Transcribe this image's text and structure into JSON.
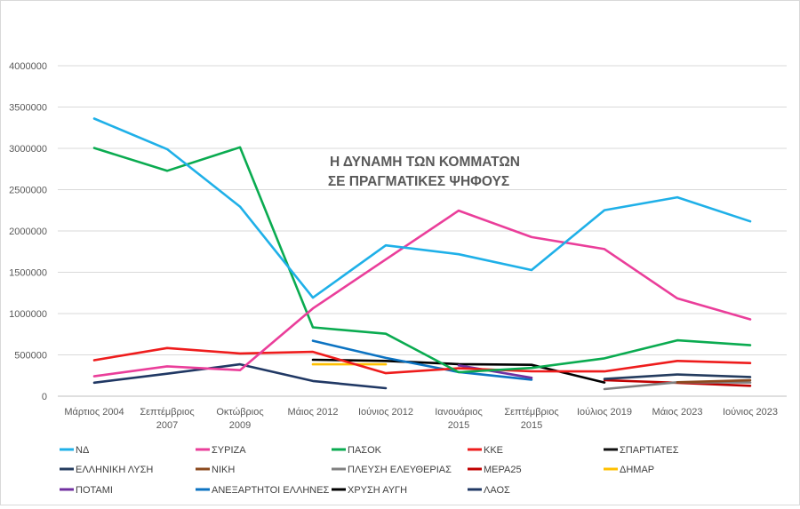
{
  "chart_data": {
    "type": "line",
    "title_line1": "Η ΔΥΝΑΜΗ ΤΩΝ ΚΟΜΜΑΤΩΝ",
    "title_line2": "ΣΕ ΠΡΑΓΜΑΤΙΚΕΣ ΨΗΦΟΥΣ",
    "categories": [
      [
        "Μάρτιος 2004"
      ],
      [
        "Σεπτέμβριος",
        "2007"
      ],
      [
        "Οκτώβριος",
        "2009"
      ],
      [
        "Μάιος 2012"
      ],
      [
        "Ιούνιος 2012"
      ],
      [
        "Ιανουάριος",
        "2015"
      ],
      [
        "Σεπτέμβριος",
        "2015"
      ],
      [
        "Ιούλιος 2019"
      ],
      [
        "Μάιος 2023"
      ],
      [
        "Ιούνιος 2023"
      ]
    ],
    "ylim": [
      0,
      4000000
    ],
    "yticks": [
      0,
      500000,
      1000000,
      1500000,
      2000000,
      2500000,
      3000000,
      3500000,
      4000000
    ],
    "grid": true,
    "legend_position": "bottom",
    "series": [
      {
        "name": "ΝΔ",
        "color": "#1fb0e8",
        "values": [
          3360000,
          2990000,
          2295000,
          1192000,
          1826000,
          1718000,
          1527000,
          2252000,
          2407000,
          2116000
        ]
      },
      {
        "name": "ΣΥΡΙΖΑ",
        "color": "#ea3e9a",
        "values": [
          241000,
          361000,
          315000,
          1062000,
          1655000,
          2246000,
          1926000,
          1781000,
          1184000,
          930000
        ]
      },
      {
        "name": "ΠΑΣΟΚ",
        "color": "#0aab50",
        "values": [
          3004000,
          2728000,
          3013000,
          833000,
          756000,
          290000,
          342000,
          458000,
          676000,
          617000
        ]
      },
      {
        "name": "ΚΚΕ",
        "color": "#ee1c1c",
        "values": [
          436000,
          583000,
          517000,
          537000,
          278000,
          338000,
          301000,
          300000,
          427000,
          401000
        ]
      },
      {
        "name": "ΣΠΑΡΤΙΑΤΕΣ",
        "color": "#111111",
        "values": [
          null,
          null,
          null,
          null,
          null,
          null,
          null,
          null,
          null,
          243000
        ]
      },
      {
        "name": "ΕΛΛΗΝΙΚΗ ΛΥΣΗ",
        "color": "#243c5f",
        "values": [
          null,
          null,
          null,
          null,
          null,
          null,
          null,
          209000,
          262000,
          232000
        ]
      },
      {
        "name": "ΝΙΚΗ",
        "color": "#8b4a1e",
        "values": [
          null,
          null,
          null,
          null,
          null,
          null,
          null,
          null,
          169000,
          193000
        ]
      },
      {
        "name": "ΠΛΕΥΣΗ ΕΛΕΥΘΕΡΙΑΣ",
        "color": "#808080",
        "values": [
          null,
          null,
          null,
          null,
          null,
          null,
          null,
          86000,
          169000,
          166000
        ]
      },
      {
        "name": "ΜΕΡΑ25",
        "color": "#c00000",
        "values": [
          null,
          null,
          null,
          null,
          null,
          null,
          null,
          194000,
          162000,
          126000
        ]
      },
      {
        "name": "ΔΗΜΑΡ",
        "color": "#ffc000",
        "values": [
          null,
          null,
          null,
          386000,
          386000,
          null,
          null,
          null,
          null,
          null
        ]
      },
      {
        "name": "ΠΟΤΑΜΙ",
        "color": "#7030a0",
        "values": [
          null,
          null,
          null,
          null,
          null,
          373000,
          223000,
          null,
          null,
          null
        ]
      },
      {
        "name": "ΑΝΕΞΑΡΤΗΤΟΙ ΕΛΛΗΝΕΣ",
        "color": "#0c73c2",
        "values": [
          null,
          null,
          null,
          671000,
          463000,
          293000,
          200000,
          null,
          null,
          null
        ]
      },
      {
        "name": "ΧΡΥΣΗ ΑΥΓΗ",
        "color": "#000000",
        "values": [
          null,
          null,
          null,
          441000,
          427000,
          388000,
          380000,
          166000,
          null,
          null
        ]
      },
      {
        "name": "ΛΑΟΣ",
        "color": "#203864",
        "values": [
          163000,
          272000,
          386000,
          184000,
          97000,
          null,
          null,
          null,
          null,
          null
        ]
      }
    ]
  }
}
